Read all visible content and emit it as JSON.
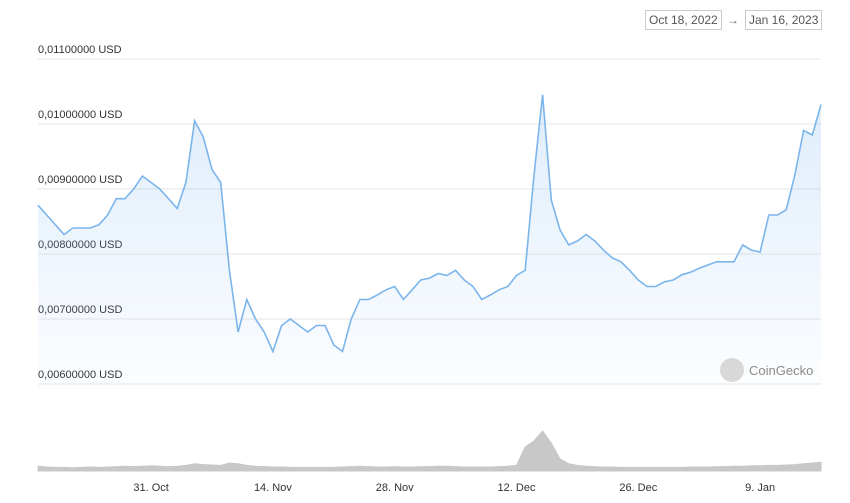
{
  "header": {
    "from": "Oct 18, 2022",
    "arrow": "→",
    "to": "Jan 16, 2023"
  },
  "watermark": "CoinGecko",
  "chart_data": {
    "type": "line",
    "color": "#7cb5ec",
    "grid": true,
    "categories": [
      null,
      null,
      null,
      null,
      null,
      null,
      null,
      null,
      null,
      null,
      null,
      null,
      null,
      "31. Oct",
      null,
      null,
      null,
      null,
      null,
      null,
      null,
      null,
      null,
      null,
      null,
      null,
      null,
      "14. Nov",
      null,
      null,
      null,
      null,
      null,
      null,
      null,
      null,
      null,
      null,
      null,
      null,
      null,
      "28. Nov",
      null,
      null,
      null,
      null,
      null,
      null,
      null,
      null,
      null,
      null,
      null,
      null,
      null,
      "12. Dec",
      null,
      null,
      null,
      null,
      null,
      null,
      null,
      null,
      null,
      null,
      null,
      null,
      null,
      "26. Dec",
      null,
      null,
      null,
      null,
      null,
      null,
      null,
      null,
      null,
      null,
      null,
      null,
      null,
      "9. Jan",
      null,
      null,
      null,
      null,
      null,
      null,
      null
    ],
    "values": [
      0.00875,
      0.0086,
      0.00845,
      0.0083,
      0.0084,
      0.0084,
      0.0084,
      0.00845,
      0.0086,
      0.00885,
      0.00885,
      0.009,
      0.0092,
      0.0091,
      0.009,
      0.00885,
      0.0087,
      0.0091,
      0.01005,
      0.0098,
      0.0093,
      0.0091,
      0.00775,
      0.0068,
      0.0073,
      0.007,
      0.0068,
      0.0065,
      0.0069,
      0.007,
      0.0069,
      0.0068,
      0.0069,
      0.0069,
      0.0066,
      0.0065,
      0.007,
      0.0073,
      0.0073,
      0.00737,
      0.00745,
      0.0075,
      0.0073,
      0.00745,
      0.0076,
      0.00763,
      0.0077,
      0.00767,
      0.00775,
      0.0076,
      0.0075,
      0.0073,
      0.00737,
      0.00745,
      0.0075,
      0.00767,
      0.00775,
      0.0092,
      0.01045,
      0.00883,
      0.00837,
      0.00814,
      0.0082,
      0.0083,
      0.0082,
      0.00806,
      0.00794,
      0.00788,
      0.00775,
      0.0076,
      0.0075,
      0.0075,
      0.00757,
      0.0076,
      0.00768,
      0.00772,
      0.00778,
      0.00783,
      0.00788,
      0.00788,
      0.00788,
      0.00814,
      0.00806,
      0.00803,
      0.0086,
      0.0086,
      0.00868,
      0.00922,
      0.0099,
      0.00983,
      0.0103
    ],
    "volume": [
      12,
      10,
      9,
      9,
      8,
      9,
      10,
      9,
      10,
      11,
      12,
      11,
      12,
      13,
      12,
      11,
      12,
      14,
      18,
      16,
      15,
      14,
      20,
      18,
      14,
      12,
      11,
      10,
      10,
      9,
      9,
      9,
      9,
      9,
      9,
      10,
      11,
      12,
      11,
      10,
      10,
      11,
      10,
      10,
      11,
      11,
      12,
      12,
      11,
      10,
      10,
      10,
      10,
      11,
      12,
      14,
      60,
      75,
      100,
      70,
      30,
      18,
      14,
      12,
      11,
      10,
      10,
      9,
      9,
      9,
      9,
      9,
      9,
      9,
      9,
      10,
      10,
      10,
      11,
      11,
      12,
      12,
      13,
      13,
      14,
      14,
      15,
      16,
      18,
      20,
      22
    ],
    "volume_color": "#c8c8c8",
    "ylim": [
      0.006,
      0.011
    ],
    "yticks": [
      {
        "value": 0.006,
        "label": "0,00600000 USD"
      },
      {
        "value": 0.007,
        "label": "0,00700000 USD"
      },
      {
        "value": 0.008,
        "label": "0,00800000 USD"
      },
      {
        "value": 0.009,
        "label": "0,00900000 USD"
      },
      {
        "value": 0.01,
        "label": "0,01000000 USD"
      },
      {
        "value": 0.011,
        "label": "0,01100000 USD"
      }
    ]
  }
}
